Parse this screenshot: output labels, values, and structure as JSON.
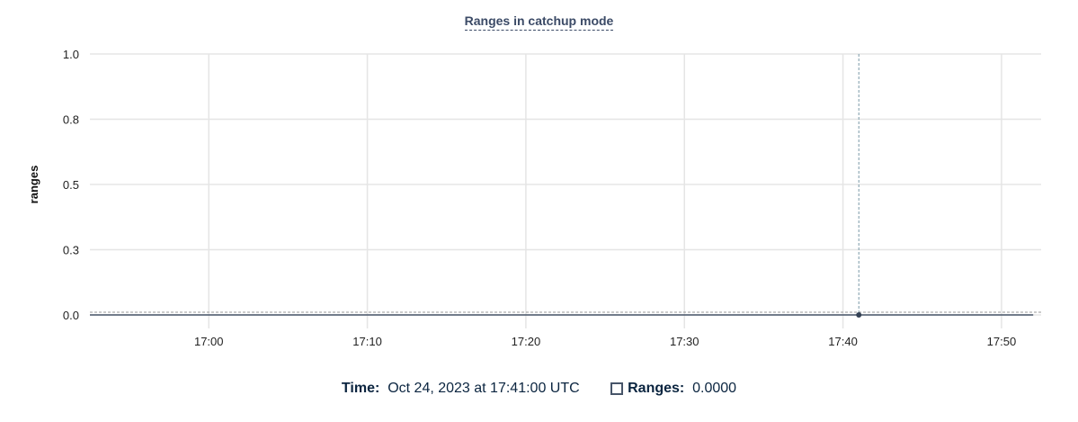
{
  "chart_data": {
    "type": "line",
    "title": "Ranges in catchup mode",
    "ylabel": "ranges",
    "xlabel": "",
    "xlim": [
      "16:52:30",
      "17:52:30"
    ],
    "ylim": [
      0,
      1
    ],
    "y_ticks": [
      {
        "value": 1.0,
        "label": "1.0"
      },
      {
        "value": 0.75,
        "label": "0.8"
      },
      {
        "value": 0.5,
        "label": "0.5"
      },
      {
        "value": 0.25,
        "label": "0.3"
      },
      {
        "value": 0,
        "label": "0.0"
      }
    ],
    "x_ticks": [
      "17:00",
      "17:10",
      "17:20",
      "17:30",
      "17:40",
      "17:50"
    ],
    "grid": true,
    "series": [
      {
        "name": "Ranges",
        "color": "#475569",
        "x_start": "16:52:30",
        "x_end": "17:52:00",
        "value": 0
      }
    ],
    "hover": {
      "x": "17:41",
      "y": 0
    }
  },
  "legend": {
    "time_label": "Time:",
    "time_value": "Oct 24, 2023 at 17:41:00 UTC",
    "series_label": "Ranges:",
    "series_value": "0.0000"
  }
}
